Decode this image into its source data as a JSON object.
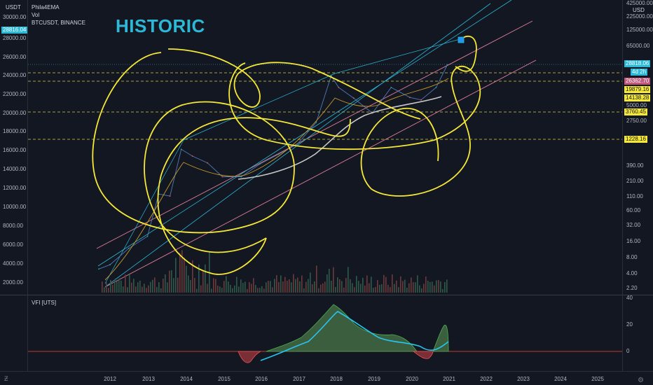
{
  "header": {
    "indicators": [
      "Phila4EMA",
      "Vol",
      "BTCUSDT, BINANCE"
    ],
    "annotation": "HISTORIC"
  },
  "axes": {
    "left_currency": "USDT",
    "right_currency": "USD",
    "left_ticks": [
      "30000.00",
      "28000.00",
      "26000.00",
      "24000.00",
      "22000.00",
      "20000.00",
      "18000.00",
      "16000.00",
      "14000.00",
      "12000.00",
      "10000.00",
      "8000.00",
      "6000.00",
      "4000.00",
      "2000.00"
    ],
    "right_ticks": [
      "425000.00",
      "225000.00",
      "125000.00",
      "65000.00",
      "5000.00",
      "2750.00",
      "1228.16",
      "390.00",
      "210.00",
      "110.00",
      "60.00",
      "32.00",
      "16.00",
      "8.00",
      "4.00",
      "2.20"
    ],
    "x_ticks": [
      "2012",
      "2013",
      "2014",
      "2015",
      "2016",
      "2017",
      "2018",
      "2019",
      "2020",
      "2021",
      "2022",
      "2023",
      "2024",
      "2025"
    ]
  },
  "badges": {
    "left_price": "28816.04",
    "right_price": "28818.06",
    "countdown": "4d 2h",
    "level_1": "26362.70",
    "level_2": "19879.16",
    "level_3": "14138.28",
    "level_4": "5000.00",
    "level_5": "3760.45",
    "level_6": "1228.16"
  },
  "vfi_pane": {
    "label": "VFI [UTS]",
    "ticks": [
      "40",
      "20",
      "0"
    ]
  },
  "chart_data": {
    "type": "line",
    "title": "",
    "series": [
      {
        "values_note": "",
        "name": "",
        "x": [
          2011.7,
          2012.0,
          2012.5,
          2013.0,
          2013.3,
          2013.6,
          2013.9,
          2014.2,
          2014.6,
          2015.0,
          2015.5,
          2016.0,
          2016.5,
          2017.0,
          2017.5,
          2017.9,
          2018.1,
          2018.5,
          2019.0,
          2019.5,
          2020.0,
          2020.3,
          2020.7,
          2021.0
        ],
        "values": [
          5,
          6,
          12,
          20,
          120,
          110,
          800,
          600,
          450,
          250,
          250,
          430,
          650,
          1000,
          2500,
          18000,
          11000,
          7000,
          3700,
          11000,
          7200,
          6500,
          11000,
          28800
        ]
      }
    ],
    "colors": {
      "price_up": "#26a69a",
      "price_down": "#ef5350",
      "drawing": "#f5e837",
      "channel": "#2cb8d6",
      "channel_pink": "#e07d9a",
      "vfi_fill_pos": "#3b5e3f",
      "vfi_fill_neg": "#7a2e35",
      "vfi_signal": "#26c6f0",
      "ema_gray": "#c8c8c8"
    }
  }
}
